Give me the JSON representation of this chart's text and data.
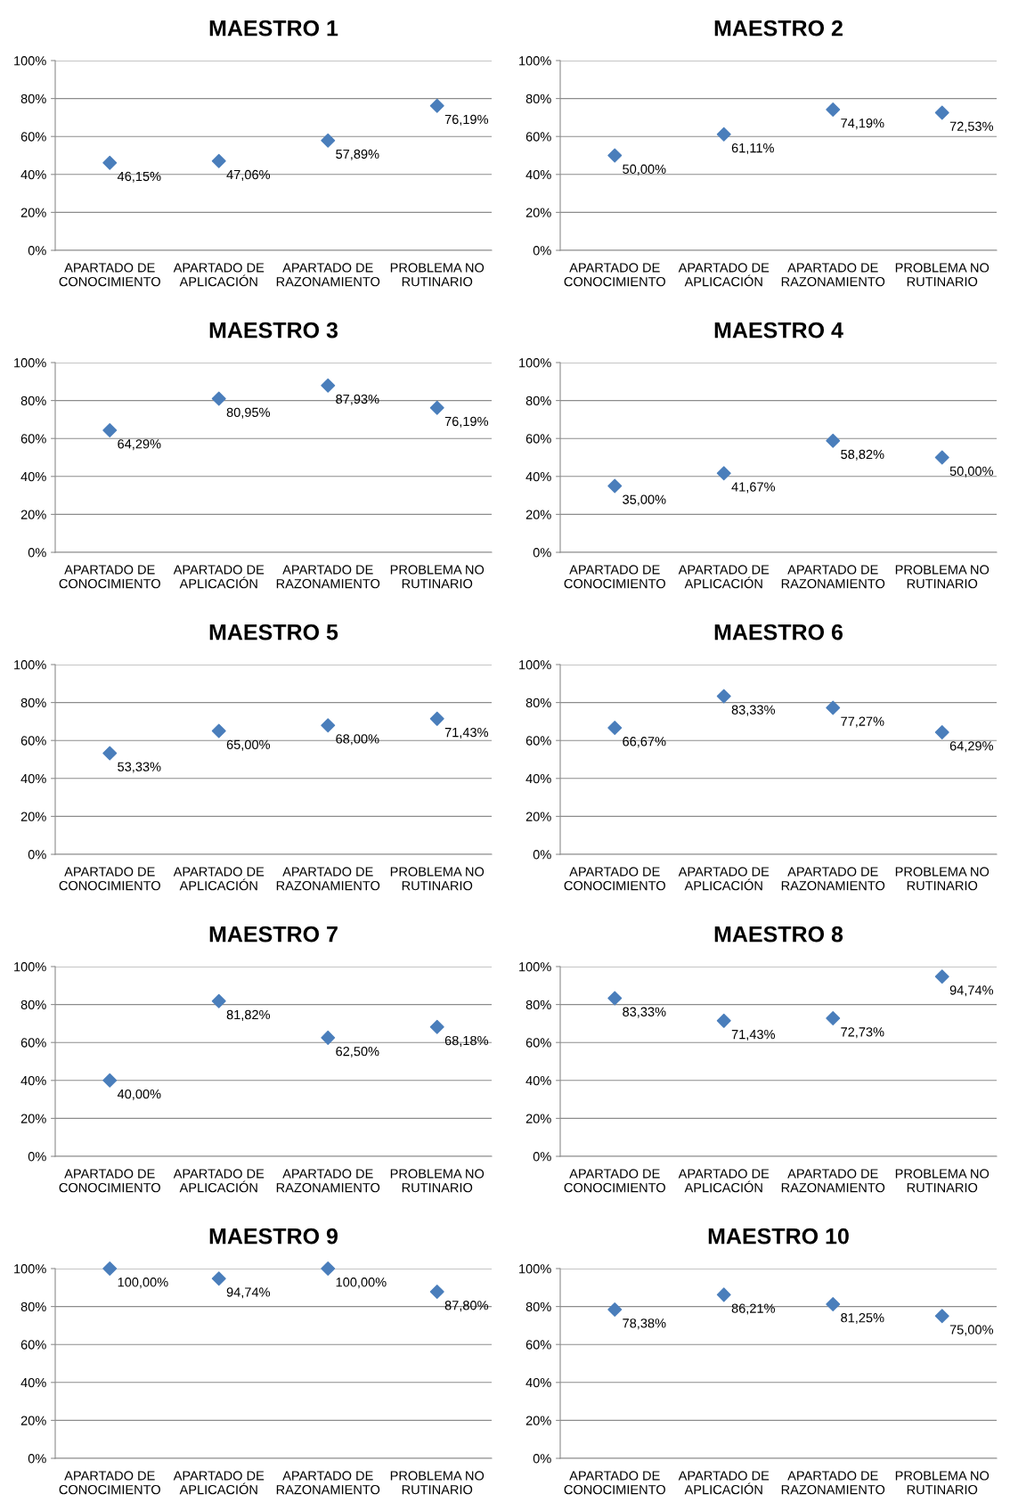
{
  "chart_data": [
    {
      "type": "scatter",
      "title": "MAESTRO 1",
      "categories": [
        "APARTADO DE\nCONOCIMIENTO",
        "APARTADO DE\nAPLICACIÓN",
        "APARTADO DE\nRAZONAMIENTO",
        "PROBLEMA NO\nRUTINARIO"
      ],
      "series": [
        {
          "color": "#4a7ebb",
          "values": [
            46.15,
            47.06,
            57.89,
            76.19
          ],
          "value_labels": [
            "46,15%",
            "47,06%",
            "57,89%",
            "76,19%"
          ]
        }
      ],
      "ylim": [
        0,
        100
      ],
      "yticks": [
        {
          "value": 0,
          "label": "0%"
        },
        {
          "value": 20,
          "label": "20%"
        },
        {
          "value": 40,
          "label": "40%"
        },
        {
          "value": 60,
          "label": "60%"
        },
        {
          "value": 80,
          "label": "80%"
        },
        {
          "value": 100,
          "label": "100%"
        }
      ],
      "grid": "y",
      "marker": "diamond"
    },
    {
      "type": "scatter",
      "title": "MAESTRO 2",
      "categories": [
        "APARTADO DE\nCONOCIMIENTO",
        "APARTADO DE\nAPLICACIÓN",
        "APARTADO DE\nRAZONAMIENTO",
        "PROBLEMA NO\nRUTINARIO"
      ],
      "series": [
        {
          "color": "#4a7ebb",
          "values": [
            50.0,
            61.11,
            74.19,
            72.53
          ],
          "value_labels": [
            "50,00%",
            "61,11%",
            "74,19%",
            "72,53%"
          ]
        }
      ],
      "ylim": [
        0,
        100
      ],
      "yticks": [
        {
          "value": 0,
          "label": "0%"
        },
        {
          "value": 20,
          "label": "20%"
        },
        {
          "value": 40,
          "label": "40%"
        },
        {
          "value": 60,
          "label": "60%"
        },
        {
          "value": 80,
          "label": "80%"
        },
        {
          "value": 100,
          "label": "100%"
        }
      ],
      "grid": "y",
      "marker": "diamond"
    },
    {
      "type": "scatter",
      "title": "MAESTRO 3",
      "categories": [
        "APARTADO DE\nCONOCIMIENTO",
        "APARTADO DE\nAPLICACIÓN",
        "APARTADO DE\nRAZONAMIENTO",
        "PROBLEMA NO\nRUTINARIO"
      ],
      "series": [
        {
          "color": "#4a7ebb",
          "values": [
            64.29,
            80.95,
            87.93,
            76.19
          ],
          "value_labels": [
            "64,29%",
            "80,95%",
            "87,93%",
            "76,19%"
          ]
        }
      ],
      "ylim": [
        0,
        100
      ],
      "yticks": [
        {
          "value": 0,
          "label": "0%"
        },
        {
          "value": 20,
          "label": "20%"
        },
        {
          "value": 40,
          "label": "40%"
        },
        {
          "value": 60,
          "label": "60%"
        },
        {
          "value": 80,
          "label": "80%"
        },
        {
          "value": 100,
          "label": "100%"
        }
      ],
      "grid": "y",
      "marker": "diamond"
    },
    {
      "type": "scatter",
      "title": "MAESTRO 4",
      "categories": [
        "APARTADO DE\nCONOCIMIENTO",
        "APARTADO DE\nAPLICACIÓN",
        "APARTADO DE\nRAZONAMIENTO",
        "PROBLEMA NO\nRUTINARIO"
      ],
      "series": [
        {
          "color": "#4a7ebb",
          "values": [
            35.0,
            41.67,
            58.82,
            50.0
          ],
          "value_labels": [
            "35,00%",
            "41,67%",
            "58,82%",
            "50,00%"
          ]
        }
      ],
      "ylim": [
        0,
        100
      ],
      "yticks": [
        {
          "value": 0,
          "label": "0%"
        },
        {
          "value": 20,
          "label": "20%"
        },
        {
          "value": 40,
          "label": "40%"
        },
        {
          "value": 60,
          "label": "60%"
        },
        {
          "value": 80,
          "label": "80%"
        },
        {
          "value": 100,
          "label": "100%"
        }
      ],
      "grid": "y",
      "marker": "diamond"
    },
    {
      "type": "scatter",
      "title": "MAESTRO 5",
      "categories": [
        "APARTADO DE\nCONOCIMIENTO",
        "APARTADO DE\nAPLICACIÓN",
        "APARTADO DE\nRAZONAMIENTO",
        "PROBLEMA NO\nRUTINARIO"
      ],
      "series": [
        {
          "color": "#4a7ebb",
          "values": [
            53.33,
            65.0,
            68.0,
            71.43
          ],
          "value_labels": [
            "53,33%",
            "65,00%",
            "68,00%",
            "71,43%"
          ]
        }
      ],
      "ylim": [
        0,
        100
      ],
      "yticks": [
        {
          "value": 0,
          "label": "0%"
        },
        {
          "value": 20,
          "label": "20%"
        },
        {
          "value": 40,
          "label": "40%"
        },
        {
          "value": 60,
          "label": "60%"
        },
        {
          "value": 80,
          "label": "80%"
        },
        {
          "value": 100,
          "label": "100%"
        }
      ],
      "grid": "y",
      "marker": "diamond"
    },
    {
      "type": "scatter",
      "title": "MAESTRO 6",
      "categories": [
        "APARTADO DE\nCONOCIMIENTO",
        "APARTADO DE\nAPLICACIÓN",
        "APARTADO DE\nRAZONAMIENTO",
        "PROBLEMA NO\nRUTINARIO"
      ],
      "series": [
        {
          "color": "#4a7ebb",
          "values": [
            66.67,
            83.33,
            77.27,
            64.29
          ],
          "value_labels": [
            "66,67%",
            "83,33%",
            "77,27%",
            "64,29%"
          ]
        }
      ],
      "ylim": [
        0,
        100
      ],
      "yticks": [
        {
          "value": 0,
          "label": "0%"
        },
        {
          "value": 20,
          "label": "20%"
        },
        {
          "value": 40,
          "label": "40%"
        },
        {
          "value": 60,
          "label": "60%"
        },
        {
          "value": 80,
          "label": "80%"
        },
        {
          "value": 100,
          "label": "100%"
        }
      ],
      "grid": "y",
      "marker": "diamond"
    },
    {
      "type": "scatter",
      "title": "MAESTRO 7",
      "categories": [
        "APARTADO DE\nCONOCIMIENTO",
        "APARTADO DE\nAPLICACIÓN",
        "APARTADO DE\nRAZONAMIENTO",
        "PROBLEMA NO\nRUTINARIO"
      ],
      "series": [
        {
          "color": "#4a7ebb",
          "values": [
            40.0,
            81.82,
            62.5,
            68.18
          ],
          "value_labels": [
            "40,00%",
            "81,82%",
            "62,50%",
            "68,18%"
          ]
        }
      ],
      "ylim": [
        0,
        100
      ],
      "yticks": [
        {
          "value": 0,
          "label": "0%"
        },
        {
          "value": 20,
          "label": "20%"
        },
        {
          "value": 40,
          "label": "40%"
        },
        {
          "value": 60,
          "label": "60%"
        },
        {
          "value": 80,
          "label": "80%"
        },
        {
          "value": 100,
          "label": "100%"
        }
      ],
      "grid": "y",
      "marker": "diamond"
    },
    {
      "type": "scatter",
      "title": "MAESTRO 8",
      "categories": [
        "APARTADO DE\nCONOCIMIENTO",
        "APARTADO DE\nAPLICACIÓN",
        "APARTADO DE\nRAZONAMIENTO",
        "PROBLEMA NO\nRUTINARIO"
      ],
      "series": [
        {
          "color": "#4a7ebb",
          "values": [
            83.33,
            71.43,
            72.73,
            94.74
          ],
          "value_labels": [
            "83,33%",
            "71,43%",
            "72,73%",
            "94,74%"
          ]
        }
      ],
      "ylim": [
        0,
        100
      ],
      "yticks": [
        {
          "value": 0,
          "label": "0%"
        },
        {
          "value": 20,
          "label": "20%"
        },
        {
          "value": 40,
          "label": "40%"
        },
        {
          "value": 60,
          "label": "60%"
        },
        {
          "value": 80,
          "label": "80%"
        },
        {
          "value": 100,
          "label": "100%"
        }
      ],
      "grid": "y",
      "marker": "diamond"
    },
    {
      "type": "scatter",
      "title": "MAESTRO 9",
      "categories": [
        "APARTADO DE\nCONOCIMIENTO",
        "APARTADO DE\nAPLICACIÓN",
        "APARTADO DE\nRAZONAMIENTO",
        "PROBLEMA NO\nRUTINARIO"
      ],
      "series": [
        {
          "color": "#4a7ebb",
          "values": [
            100.0,
            94.74,
            100.0,
            87.8
          ],
          "value_labels": [
            "100,00%",
            "94,74%",
            "100,00%",
            "87,80%"
          ]
        }
      ],
      "ylim": [
        0,
        100
      ],
      "yticks": [
        {
          "value": 0,
          "label": "0%"
        },
        {
          "value": 20,
          "label": "20%"
        },
        {
          "value": 40,
          "label": "40%"
        },
        {
          "value": 60,
          "label": "60%"
        },
        {
          "value": 80,
          "label": "80%"
        },
        {
          "value": 100,
          "label": "100%"
        }
      ],
      "grid": "y",
      "marker": "diamond"
    },
    {
      "type": "scatter",
      "title": "MAESTRO 10",
      "categories": [
        "APARTADO DE\nCONOCIMIENTO",
        "APARTADO DE\nAPLICACIÓN",
        "APARTADO DE\nRAZONAMIENTO",
        "PROBLEMA NO\nRUTINARIO"
      ],
      "series": [
        {
          "color": "#4a7ebb",
          "values": [
            78.38,
            86.21,
            81.25,
            75.0
          ],
          "value_labels": [
            "78,38%",
            "86,21%",
            "81,25%",
            "75,00%"
          ]
        }
      ],
      "ylim": [
        0,
        100
      ],
      "yticks": [
        {
          "value": 0,
          "label": "0%"
        },
        {
          "value": 20,
          "label": "20%"
        },
        {
          "value": 40,
          "label": "40%"
        },
        {
          "value": 60,
          "label": "60%"
        },
        {
          "value": 80,
          "label": "80%"
        },
        {
          "value": 100,
          "label": "100%"
        }
      ],
      "grid": "y",
      "marker": "diamond"
    }
  ]
}
